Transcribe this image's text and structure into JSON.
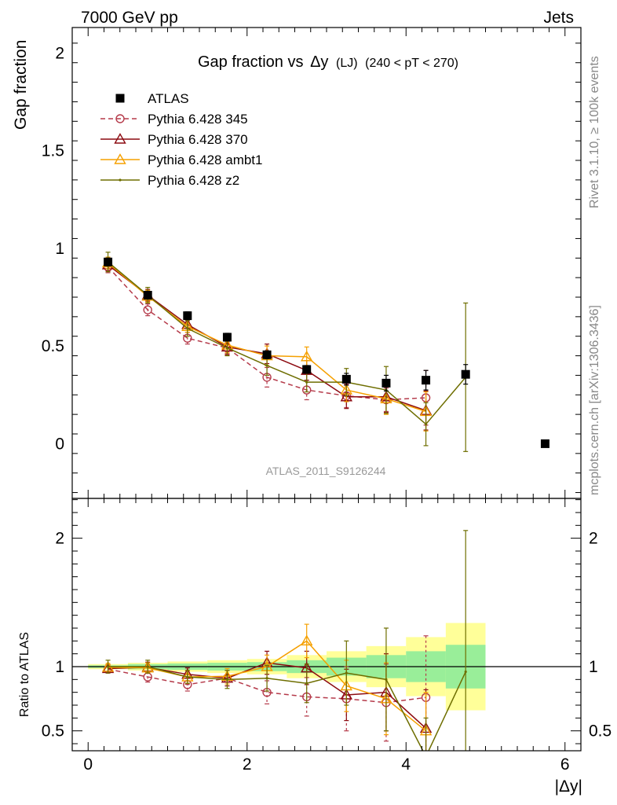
{
  "header": {
    "energy_label": "7000 GeV pp",
    "category_label": "Jets"
  },
  "side_labels": {
    "rivet": "Rivet 3.1.10, ≥ 100k events",
    "mcplots": "mcplots.cern.ch [arXiv:1306.3436]"
  },
  "chart_data": [
    {
      "type": "scatter",
      "panel": "main",
      "title_main": "Gap fraction vs",
      "title_delta": "Δy",
      "title_lj": "(LJ)",
      "title_range": "(240 < pT < 270)",
      "ylabel": "Gap fraction",
      "xlim": [
        -0.2,
        6.2
      ],
      "ylim": [
        -0.28,
        2.13
      ],
      "yticks": [
        0,
        0.5,
        1,
        1.5,
        2
      ],
      "ytick_labels": [
        "0",
        "0.5",
        "1",
        "1.5",
        "2"
      ],
      "watermark": "ATLAS_2011_S9126244",
      "legend_position": "top-left",
      "series": [
        {
          "name": "ATLAS",
          "color": "#000000",
          "style": "square",
          "x": [
            0.25,
            0.75,
            1.25,
            1.75,
            2.25,
            2.75,
            3.25,
            3.75,
            4.25,
            4.75,
            5.75
          ],
          "y": [
            0.93,
            0.76,
            0.655,
            0.545,
            0.455,
            0.38,
            0.33,
            0.31,
            0.325,
            0.355,
            0.0
          ],
          "err": [
            0.02,
            0.02,
            0.02,
            0.02,
            0.02,
            0.02,
            0.03,
            0.04,
            0.05,
            0.05,
            0.0
          ]
        },
        {
          "name": "Pythia 6.428 345",
          "color": "#b53a4a",
          "style": "circle-dashed",
          "x": [
            0.25,
            0.75,
            1.25,
            1.75,
            2.25,
            2.75,
            3.25,
            3.75,
            4.25
          ],
          "y": [
            0.905,
            0.685,
            0.54,
            0.49,
            0.34,
            0.275,
            0.245,
            0.225,
            0.235
          ],
          "err": [
            0.03,
            0.03,
            0.03,
            0.03,
            0.05,
            0.05,
            0.06,
            0.06,
            0.14
          ]
        },
        {
          "name": "Pythia 6.428 370",
          "color": "#8c0a10",
          "style": "triangle",
          "x": [
            0.25,
            0.75,
            1.25,
            1.75,
            2.25,
            2.75,
            3.25,
            3.75,
            4.25
          ],
          "y": [
            0.915,
            0.76,
            0.61,
            0.495,
            0.46,
            0.375,
            0.24,
            0.24,
            0.17
          ],
          "err": [
            0.03,
            0.03,
            0.03,
            0.04,
            0.05,
            0.05,
            0.06,
            0.08,
            0.1
          ]
        },
        {
          "name": "Pythia 6.428 ambt1",
          "color": "#f5a000",
          "style": "triangle",
          "x": [
            0.25,
            0.75,
            1.25,
            1.75,
            2.25,
            2.75,
            3.25,
            3.75,
            4.25
          ],
          "y": [
            0.925,
            0.755,
            0.6,
            0.505,
            0.45,
            0.445,
            0.275,
            0.23,
            0.165
          ],
          "err": [
            0.03,
            0.03,
            0.03,
            0.04,
            0.05,
            0.05,
            0.06,
            0.08,
            0.1
          ]
        },
        {
          "name": "Pythia 6.428 z2",
          "color": "#6e6e00",
          "style": "dot",
          "x": [
            0.25,
            0.75,
            1.25,
            1.75,
            2.25,
            2.75,
            3.25,
            3.75,
            4.25,
            4.75
          ],
          "y": [
            0.93,
            0.76,
            0.59,
            0.49,
            0.4,
            0.315,
            0.315,
            0.275,
            0.1,
            0.34
          ],
          "err": [
            0.05,
            0.04,
            0.04,
            0.04,
            0.05,
            0.05,
            0.07,
            0.12,
            0.11,
            0.38
          ]
        }
      ]
    },
    {
      "type": "scatter",
      "panel": "ratio",
      "ylabel": "Ratio to ATLAS",
      "xlabel": "|Δy|",
      "xlim": [
        -0.2,
        6.2
      ],
      "ylim": [
        0.345,
        2.31
      ],
      "yticks": [
        0.5,
        1,
        2
      ],
      "ytick_labels": [
        "0.5",
        "1",
        "2"
      ],
      "xticks": [
        0,
        2,
        4,
        6
      ],
      "xtick_labels": [
        "0",
        "2",
        "4",
        "6"
      ],
      "uncertainty_bands": {
        "x_edges": [
          0,
          0.5,
          1,
          1.5,
          2,
          2.5,
          3,
          3.5,
          4,
          4.5,
          5
        ],
        "yellow_half_widths": [
          0.02,
          0.03,
          0.04,
          0.05,
          0.06,
          0.09,
          0.12,
          0.16,
          0.23,
          0.34,
          0.84
        ],
        "green_half_widths": [
          0.01,
          0.02,
          0.025,
          0.03,
          0.035,
          0.05,
          0.07,
          0.09,
          0.12,
          0.17,
          0.42
        ],
        "yellow_color": "#ffff99",
        "green_color": "#99ee99"
      },
      "series": [
        {
          "name": "Pythia 6.428 345",
          "color": "#b53a4a",
          "style": "circle-dashed",
          "x": [
            0.25,
            0.75,
            1.25,
            1.75,
            2.25,
            2.75,
            3.25,
            3.75,
            4.25
          ],
          "y": [
            0.98,
            0.92,
            0.86,
            0.91,
            0.8,
            0.765,
            0.75,
            0.72,
            0.76
          ],
          "err": [
            0.03,
            0.04,
            0.05,
            0.06,
            0.09,
            0.15,
            0.25,
            0.3,
            0.48
          ]
        },
        {
          "name": "Pythia 6.428 370",
          "color": "#8c0a10",
          "style": "triangle",
          "x": [
            0.25,
            0.75,
            1.25,
            1.75,
            2.25,
            2.75,
            3.25,
            3.75,
            4.25
          ],
          "y": [
            0.985,
            0.995,
            0.94,
            0.91,
            1.03,
            0.99,
            0.78,
            0.8,
            0.52
          ],
          "err": [
            0.03,
            0.04,
            0.05,
            0.06,
            0.09,
            0.13,
            0.2,
            0.3,
            0.3
          ]
        },
        {
          "name": "Pythia 6.428 ambt1",
          "color": "#f5a000",
          "style": "triangle",
          "x": [
            0.25,
            0.75,
            1.25,
            1.75,
            2.25,
            2.75,
            3.25,
            3.75,
            4.25
          ],
          "y": [
            0.995,
            0.99,
            0.92,
            0.925,
            1.0,
            1.2,
            0.85,
            0.75,
            0.5
          ],
          "err": [
            0.03,
            0.04,
            0.05,
            0.06,
            0.09,
            0.13,
            0.2,
            0.28,
            0.3
          ]
        },
        {
          "name": "Pythia 6.428 z2",
          "color": "#6e6e00",
          "style": "dot",
          "x": [
            0.25,
            0.75,
            1.25,
            1.75,
            2.25,
            2.75,
            3.25,
            3.75,
            4.25,
            4.75
          ],
          "y": [
            1.0,
            1.0,
            0.92,
            0.9,
            0.91,
            0.87,
            0.95,
            0.9,
            0.3,
            0.96
          ],
          "err": [
            0.05,
            0.05,
            0.05,
            0.07,
            0.1,
            0.15,
            0.25,
            0.4,
            0.3,
            1.1
          ]
        }
      ]
    }
  ]
}
